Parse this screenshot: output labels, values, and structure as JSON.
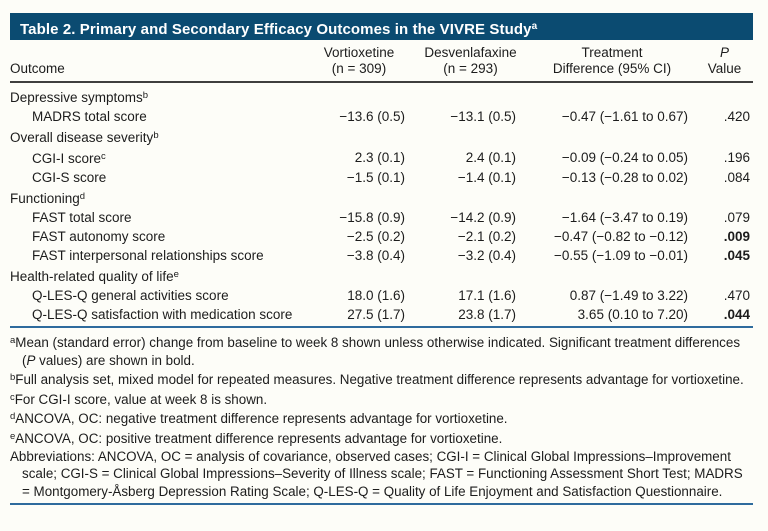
{
  "title": {
    "text": "Table 2. Primary and Secondary Efficacy Outcomes in the VIVRE Study",
    "sup": "a"
  },
  "columns": [
    {
      "line1": "Outcome",
      "line2": ""
    },
    {
      "line1": "Vortioxetine",
      "line2": "(n = 309)"
    },
    {
      "line1": "Desvenlafaxine",
      "line2": "(n = 293)"
    },
    {
      "line1": "Treatment",
      "line2": "Difference (95% CI)"
    },
    {
      "line1": "P",
      "line2": "Value"
    }
  ],
  "rows": [
    {
      "type": "section",
      "label": "Depressive symptoms",
      "sup": "b"
    },
    {
      "type": "data",
      "label": "MADRS total score",
      "sup": "",
      "values": [
        "−13.6 (0.5)",
        "−13.1 (0.5)",
        "−0.47 (−1.61 to 0.67)",
        ".420"
      ],
      "bold_p": false
    },
    {
      "type": "section",
      "label": "Overall disease severity",
      "sup": "b"
    },
    {
      "type": "data",
      "label": "CGI-I score",
      "sup": "c",
      "values": [
        "2.3 (0.1)",
        "2.4 (0.1)",
        "−0.09 (−0.24 to 0.05)",
        ".196"
      ],
      "bold_p": false
    },
    {
      "type": "data",
      "label": "CGI-S score",
      "sup": "",
      "values": [
        "−1.5 (0.1)",
        "−1.4 (0.1)",
        "−0.13 (−0.28 to 0.02)",
        ".084"
      ],
      "bold_p": false
    },
    {
      "type": "section",
      "label": "Functioning",
      "sup": "d"
    },
    {
      "type": "data",
      "label": "FAST total score",
      "sup": "",
      "values": [
        "−15.8 (0.9)",
        "−14.2 (0.9)",
        "−1.64 (−3.47 to 0.19)",
        ".079"
      ],
      "bold_p": false
    },
    {
      "type": "data",
      "label": "FAST autonomy score",
      "sup": "",
      "values": [
        "−2.5 (0.2)",
        "−2.1 (0.2)",
        "−0.47 (−0.82 to −0.12)",
        ".009"
      ],
      "bold_p": true
    },
    {
      "type": "data",
      "label": "FAST interpersonal relationships score",
      "sup": "",
      "values": [
        "−3.8 (0.4)",
        "−3.2 (0.4)",
        "−0.55 (−1.09 to −0.01)",
        ".045"
      ],
      "bold_p": true
    },
    {
      "type": "section",
      "label": "Health-related quality of life",
      "sup": "e"
    },
    {
      "type": "data",
      "label": "Q-LES-Q general activities score",
      "sup": "",
      "values": [
        "18.0 (1.6)",
        "17.1 (1.6)",
        "0.87 (−1.49 to 3.22)",
        ".470"
      ],
      "bold_p": false
    },
    {
      "type": "data",
      "label": "Q-LES-Q satisfaction with medication score",
      "sup": "",
      "values": [
        "27.5 (1.7)",
        "23.8 (1.7)",
        "3.65 (0.10 to 7.20)",
        ".044"
      ],
      "bold_p": true
    }
  ],
  "footnotes": [
    {
      "sup": "a",
      "parts": [
        "Mean (standard error) change from baseline to week 8 shown unless otherwise indicated. Significant treatment differences (",
        {
          "italic": "P"
        },
        " values) are shown in bold."
      ]
    },
    {
      "sup": "b",
      "parts": [
        "Full analysis set, mixed model for repeated measures. Negative treatment difference represents advantage for vortioxetine."
      ]
    },
    {
      "sup": "c",
      "parts": [
        "For CGI-I score, value at week 8 is shown."
      ]
    },
    {
      "sup": "d",
      "parts": [
        "ANCOVA, OC: negative treatment difference represents advantage for vortioxetine."
      ]
    },
    {
      "sup": "e",
      "parts": [
        "ANCOVA, OC: positive treatment difference represents advantage for vortioxetine."
      ]
    },
    {
      "sup": "",
      "parts": [
        "Abbreviations: ANCOVA, OC = analysis of covariance, observed cases; CGI-I = Clinical Global Impressions–Improvement scale; CGI-S = Clinical Global Impressions–Severity of Illness scale; FAST = Functioning Assessment Short Test; MADRS = Montgomery-Åsberg Depression Rating Scale; Q-LES-Q = Quality of Life Enjoyment and Satisfaction Questionnaire."
      ]
    }
  ],
  "colors": {
    "title_bar_bg": "#0b4b71",
    "title_text": "#ffffff",
    "header_rule": "#3f3f3f",
    "blue_rule": "#2e6b9d",
    "body_text": "#1c1c1c",
    "page_bg": "#fdfdf8"
  }
}
